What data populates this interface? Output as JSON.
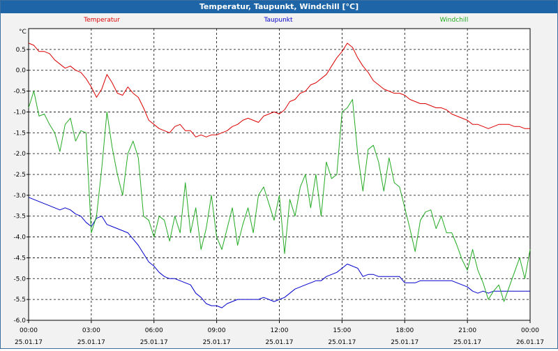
{
  "window": {
    "title": "Temperatur, Taupunkt, Windchill [°C]"
  },
  "chart_data": {
    "type": "line",
    "title": "Temperatur, Taupunkt, Windchill [°C]",
    "ylabel": "°C",
    "ylim": [
      -6.0,
      1.0
    ],
    "xlim": [
      0,
      24
    ],
    "grid": true,
    "legend": "top",
    "y_ticks": [
      "0.5",
      "0.0",
      "-0.5",
      "-1.0",
      "-1.5",
      "-2.0",
      "-2.5",
      "-3.0",
      "-3.5",
      "-4.0",
      "-4.5",
      "-5.0",
      "-5.5",
      "-6.0"
    ],
    "y_tick_values": [
      0.5,
      0.0,
      -0.5,
      -1.0,
      -1.5,
      -2.0,
      -2.5,
      -3.0,
      -3.5,
      -4.0,
      -4.5,
      -5.0,
      -5.5,
      -6.0
    ],
    "x_ticks": [
      {
        "hour": 0,
        "time": "00:00",
        "date": "25.01.17"
      },
      {
        "hour": 3,
        "time": "03:00",
        "date": "25.01.17"
      },
      {
        "hour": 6,
        "time": "06:00",
        "date": "25.01.17"
      },
      {
        "hour": 9,
        "time": "09:00",
        "date": "25.01.17"
      },
      {
        "hour": 12,
        "time": "12:00",
        "date": "25.01.17"
      },
      {
        "hour": 15,
        "time": "15:00",
        "date": "25.01.17"
      },
      {
        "hour": 18,
        "time": "18:00",
        "date": "25.01.17"
      },
      {
        "hour": 21,
        "time": "21:00",
        "date": "25.01.17"
      },
      {
        "hour": 24,
        "time": "00:00",
        "date": "26.01.17"
      }
    ],
    "series": [
      {
        "name": "Temperatur",
        "color": "#dd0000",
        "x": [
          0,
          0.25,
          0.5,
          0.75,
          1,
          1.25,
          1.5,
          1.75,
          2,
          2.25,
          2.5,
          2.75,
          3,
          3.25,
          3.5,
          3.75,
          4,
          4.25,
          4.5,
          4.75,
          5,
          5.25,
          5.5,
          5.75,
          6,
          6.25,
          6.5,
          6.75,
          7,
          7.25,
          7.5,
          7.75,
          8,
          8.25,
          8.5,
          8.75,
          9,
          9.25,
          9.5,
          9.75,
          10,
          10.25,
          10.5,
          10.75,
          11,
          11.25,
          11.5,
          11.75,
          12,
          12.25,
          12.5,
          12.75,
          13,
          13.25,
          13.5,
          13.75,
          14,
          14.25,
          14.5,
          14.75,
          15,
          15.25,
          15.5,
          15.75,
          16,
          16.25,
          16.5,
          16.75,
          17,
          17.25,
          17.5,
          17.75,
          18,
          18.25,
          18.5,
          18.75,
          19,
          19.25,
          19.5,
          19.75,
          20,
          20.25,
          20.5,
          20.75,
          21,
          21.25,
          21.5,
          21.75,
          22,
          22.25,
          22.5,
          22.75,
          23,
          23.25,
          23.5,
          23.75,
          24
        ],
        "values": [
          0.65,
          0.6,
          0.45,
          0.45,
          0.4,
          0.25,
          0.15,
          0.05,
          0.1,
          0.0,
          -0.05,
          -0.2,
          -0.4,
          -0.65,
          -0.45,
          -0.1,
          -0.3,
          -0.55,
          -0.6,
          -0.4,
          -0.55,
          -0.65,
          -0.9,
          -1.2,
          -1.3,
          -1.4,
          -1.45,
          -1.5,
          -1.35,
          -1.3,
          -1.45,
          -1.45,
          -1.6,
          -1.55,
          -1.6,
          -1.55,
          -1.55,
          -1.5,
          -1.45,
          -1.35,
          -1.3,
          -1.2,
          -1.15,
          -1.2,
          -1.25,
          -1.1,
          -1.05,
          -1.0,
          -1.05,
          -0.95,
          -0.75,
          -0.7,
          -0.55,
          -0.5,
          -0.35,
          -0.3,
          -0.2,
          -0.1,
          0.1,
          0.3,
          0.45,
          0.65,
          0.55,
          0.3,
          0.1,
          -0.05,
          -0.25,
          -0.35,
          -0.45,
          -0.5,
          -0.55,
          -0.55,
          -0.6,
          -0.7,
          -0.75,
          -0.8,
          -0.8,
          -0.85,
          -0.9,
          -0.9,
          -0.95,
          -1.05,
          -1.1,
          -1.15,
          -1.2,
          -1.3,
          -1.3,
          -1.35,
          -1.4,
          -1.35,
          -1.3,
          -1.3,
          -1.3,
          -1.35,
          -1.35,
          -1.4,
          -1.4
        ]
      },
      {
        "name": "Taupunkt",
        "color": "#0000cc",
        "x": [
          0,
          0.25,
          0.5,
          0.75,
          1,
          1.25,
          1.5,
          1.75,
          2,
          2.25,
          2.5,
          2.75,
          3,
          3.25,
          3.5,
          3.75,
          4,
          4.25,
          4.5,
          4.75,
          5,
          5.25,
          5.5,
          5.75,
          6,
          6.25,
          6.5,
          6.75,
          7,
          7.25,
          7.5,
          7.75,
          8,
          8.25,
          8.5,
          8.75,
          9,
          9.25,
          9.5,
          9.75,
          10,
          10.25,
          10.5,
          10.75,
          11,
          11.25,
          11.5,
          11.75,
          12,
          12.25,
          12.5,
          12.75,
          13,
          13.25,
          13.5,
          13.75,
          14,
          14.25,
          14.5,
          14.75,
          15,
          15.25,
          15.5,
          15.75,
          16,
          16.25,
          16.5,
          16.75,
          17,
          17.25,
          17.5,
          17.75,
          18,
          18.25,
          18.5,
          18.75,
          19,
          19.25,
          19.5,
          19.75,
          20,
          20.25,
          20.5,
          20.75,
          21,
          21.25,
          21.5,
          21.75,
          22,
          22.25,
          22.5,
          22.75,
          23,
          23.25,
          23.5,
          23.75,
          24
        ],
        "values": [
          -3.05,
          -3.1,
          -3.15,
          -3.2,
          -3.25,
          -3.3,
          -3.35,
          -3.3,
          -3.35,
          -3.45,
          -3.5,
          -3.65,
          -3.75,
          -3.55,
          -3.5,
          -3.7,
          -3.75,
          -3.8,
          -3.85,
          -3.9,
          -4.05,
          -4.2,
          -4.4,
          -4.6,
          -4.7,
          -4.85,
          -4.95,
          -5.0,
          -5.0,
          -5.05,
          -5.1,
          -5.15,
          -5.35,
          -5.45,
          -5.6,
          -5.65,
          -5.65,
          -5.7,
          -5.6,
          -5.55,
          -5.5,
          -5.5,
          -5.5,
          -5.5,
          -5.5,
          -5.45,
          -5.5,
          -5.55,
          -5.5,
          -5.45,
          -5.35,
          -5.25,
          -5.2,
          -5.15,
          -5.1,
          -5.05,
          -5.05,
          -4.95,
          -4.9,
          -4.85,
          -4.75,
          -4.65,
          -4.7,
          -4.75,
          -4.95,
          -4.9,
          -4.9,
          -4.95,
          -4.95,
          -4.95,
          -4.95,
          -4.95,
          -5.1,
          -5.1,
          -5.1,
          -5.05,
          -5.05,
          -5.05,
          -5.05,
          -5.05,
          -5.05,
          -5.05,
          -5.1,
          -5.15,
          -5.2,
          -5.3,
          -5.35,
          -5.3,
          -5.35,
          -5.3,
          -5.3,
          -5.3,
          -5.3,
          -5.3,
          -5.3,
          -5.3,
          -5.3
        ]
      },
      {
        "name": "Windchill",
        "color": "#22aa22",
        "x": [
          0,
          0.25,
          0.5,
          0.75,
          1,
          1.25,
          1.5,
          1.75,
          2,
          2.25,
          2.5,
          2.75,
          3,
          3.25,
          3.5,
          3.75,
          4,
          4.25,
          4.5,
          4.75,
          5,
          5.25,
          5.5,
          5.75,
          6,
          6.25,
          6.5,
          6.75,
          7,
          7.25,
          7.5,
          7.75,
          8,
          8.25,
          8.5,
          8.75,
          9,
          9.25,
          9.5,
          9.75,
          10,
          10.25,
          10.5,
          10.75,
          11,
          11.25,
          11.5,
          11.75,
          12,
          12.25,
          12.5,
          12.75,
          13,
          13.25,
          13.5,
          13.75,
          14,
          14.25,
          14.5,
          14.75,
          15,
          15.25,
          15.5,
          15.75,
          16,
          16.25,
          16.5,
          16.75,
          17,
          17.25,
          17.5,
          17.75,
          18,
          18.25,
          18.5,
          18.75,
          19,
          19.25,
          19.5,
          19.75,
          20,
          20.25,
          20.5,
          20.75,
          21,
          21.25,
          21.5,
          21.75,
          22,
          22.25,
          22.5,
          22.75,
          23,
          23.25,
          23.5,
          23.75,
          24
        ],
        "values": [
          -0.9,
          -0.5,
          -1.1,
          -1.05,
          -1.3,
          -1.5,
          -1.95,
          -1.3,
          -1.15,
          -1.7,
          -1.45,
          -1.5,
          -3.9,
          -3.5,
          -2.35,
          -1.0,
          -1.85,
          -2.5,
          -3.0,
          -2.0,
          -1.7,
          -2.1,
          -3.5,
          -3.6,
          -4.0,
          -3.5,
          -3.6,
          -4.1,
          -3.5,
          -3.9,
          -2.7,
          -3.9,
          -3.3,
          -4.3,
          -3.8,
          -3.0,
          -4.0,
          -4.3,
          -3.8,
          -3.3,
          -4.2,
          -3.7,
          -3.3,
          -3.9,
          -3.0,
          -2.8,
          -3.2,
          -3.6,
          -3.0,
          -4.4,
          -3.1,
          -3.5,
          -2.8,
          -2.5,
          -3.3,
          -2.5,
          -3.5,
          -2.2,
          -2.6,
          -2.5,
          -1.0,
          -0.9,
          -0.7,
          -2.0,
          -2.9,
          -1.9,
          -1.8,
          -2.2,
          -2.9,
          -2.1,
          -2.7,
          -2.8,
          -3.3,
          -3.8,
          -4.35,
          -3.6,
          -3.4,
          -3.35,
          -3.8,
          -3.5,
          -3.9,
          -3.9,
          -4.2,
          -4.55,
          -4.8,
          -4.3,
          -4.8,
          -5.1,
          -5.5,
          -5.3,
          -5.15,
          -5.55,
          -5.2,
          -4.85,
          -4.5,
          -5.0,
          -4.3
        ]
      }
    ]
  }
}
